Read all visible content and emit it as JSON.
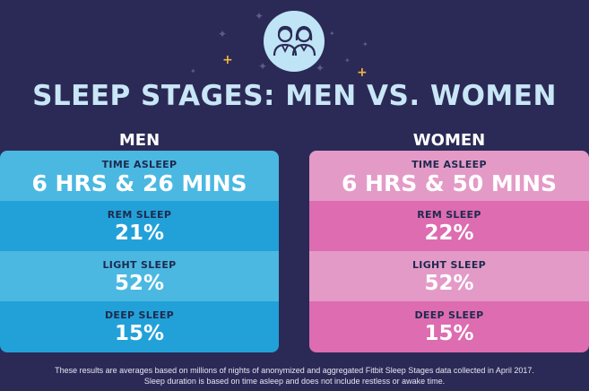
{
  "header": {
    "icon": "man-and-woman-avatars-icon",
    "title": "SLEEP STAGES: MEN VS. WOMEN"
  },
  "colors": {
    "background": "#2b2a56",
    "men_light": "#4bb8e2",
    "men_dark": "#22a1d9",
    "women_light": "#e49ac7",
    "women_dark": "#dd6cb0",
    "star": "#5b5c8e",
    "accent_plus": "#f3b642"
  },
  "chart_data": {
    "type": "table",
    "title": "SLEEP STAGES: MEN VS. WOMEN",
    "columns": [
      "MEN",
      "WOMEN"
    ],
    "rows": [
      {
        "label": "TIME ASLEEP",
        "values": [
          "6 HRS & 26 MINS",
          "6 HRS & 50 MINS"
        ]
      },
      {
        "label": "REM SLEEP",
        "values": [
          "21%",
          "22%"
        ]
      },
      {
        "label": "LIGHT SLEEP",
        "values": [
          "52%",
          "52%"
        ]
      },
      {
        "label": "DEEP SLEEP",
        "values": [
          "15%",
          "15%"
        ]
      }
    ]
  },
  "footnote": {
    "line1": "These results are averages based on millions of nights of anonymized and aggregated Fitbit Sleep Stages data collected in April 2017.",
    "line2": "Sleep duration is based on time asleep and does not include restless or awake time."
  }
}
